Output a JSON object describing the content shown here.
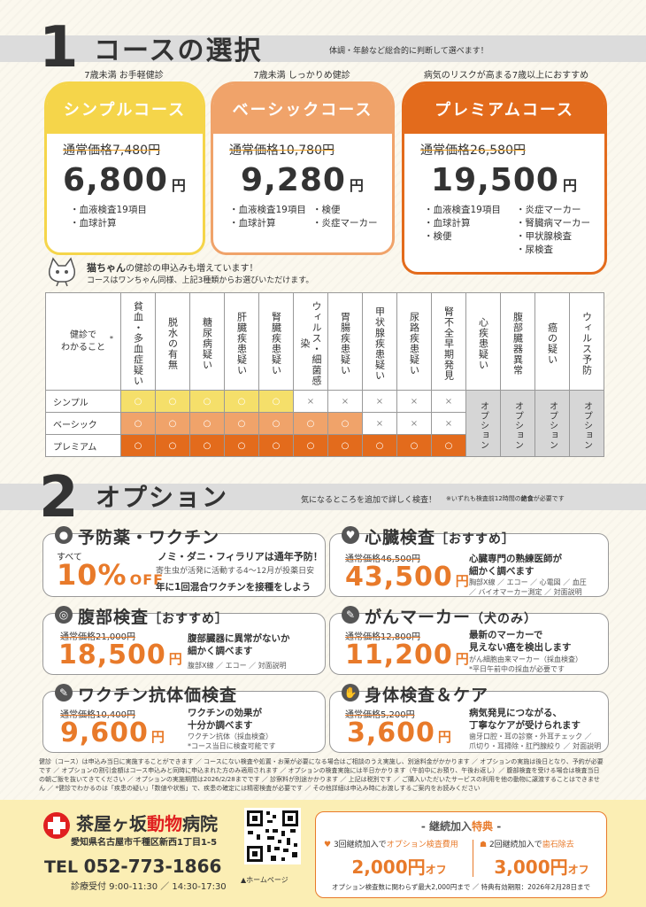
{
  "section1": {
    "num": "1",
    "title": "コースの選択",
    "sub": "体調・年齢など総合的に判断して選べます！"
  },
  "courses": [
    {
      "label": "7歳未満 お手軽健診",
      "name": "シンプルコース",
      "reg": "通常価格7,480円",
      "price": "6,800",
      "yen": "円",
      "items": [
        "・血液検査19項目",
        "・血球計算"
      ],
      "color": "#f5d54a"
    },
    {
      "label": "7歳未満 しっかりめ健診",
      "name": "ベーシックコース",
      "reg": "通常価格10,780円",
      "price": "9,280",
      "yen": "円",
      "items": [
        "・血液検査19項目",
        "・検便",
        "・血球計算",
        "・炎症マーカー"
      ],
      "color": "#f0a36a"
    },
    {
      "label": "病気のリスクが高まる7歳以上におすすめ",
      "name": "プレミアムコース",
      "reg": "通常価格26,580円",
      "price": "19,500",
      "yen": "円",
      "items": [
        "・血液検査19項目",
        "・炎症マーカー",
        "・血球計算",
        "・腎臓病マーカー",
        "・検便",
        "・甲状腺検査",
        "",
        "・尿検査"
      ],
      "color": "#e36b1c"
    }
  ],
  "cat": {
    "title": "猫ちゃん",
    "title_rest": "の健診の申込みも増えています！",
    "line2": "コースはワンちゃん同様、上記3種類からお選びいただけます。"
  },
  "table": {
    "corner": "健診で\nわかること",
    "star": "*",
    "headers": [
      "貧血・多血症疑い",
      "脱水の有無",
      "糖尿病疑い",
      "肝臓疾患疑い",
      "腎臓疾患疑い",
      "ウィルス・細菌感染",
      "胃腸疾患疑い",
      "甲状腺疾患疑い",
      "尿路疾患疑い",
      "腎不全早期発見",
      "心疾患疑い",
      "腹部臓器異常",
      "癌の疑い",
      "ウィルス予防"
    ],
    "rows": [
      {
        "name": "シンプル",
        "marks": [
          "○",
          "○",
          "○",
          "○",
          "○",
          "×",
          "×",
          "×",
          "×",
          "×"
        ]
      },
      {
        "name": "ベーシック",
        "marks": [
          "○",
          "○",
          "○",
          "○",
          "○",
          "○",
          "○",
          "×",
          "×",
          "×"
        ]
      },
      {
        "name": "プレミアム",
        "marks": [
          "○",
          "○",
          "○",
          "○",
          "○",
          "○",
          "○",
          "○",
          "○",
          "○"
        ]
      }
    ],
    "option": "オプション",
    "circle": "○",
    "cross": "×"
  },
  "section2": {
    "num": "2",
    "title": "オプション",
    "sub": "気になるところを追加で詳しく検査！",
    "note_pre": "※いずれも検査前12時間の",
    "note_bold": "絶食",
    "note_post": "が必要です"
  },
  "options": {
    "vaccine": {
      "title": "予防薬・ワクチン",
      "all": "すべて",
      "pct": "10",
      "pct_sign": "%",
      "off": "OFF",
      "d1": "ノミ・ダニ・フィラリアは通年予防！",
      "d2": "寄生虫が活発に活動する4～12月が投薬日安",
      "d3": "年に1回混合ワクチンを接種をしよう"
    },
    "heart": {
      "title": "心臓検査",
      "tag": "［おすすめ］",
      "reg": "通常価格46,500円",
      "price": "43,500",
      "yen": "円",
      "d1": "心臓専門の熟練医師が",
      "d2": "細かく調べます",
      "s1": "胸部X線 ／ エコー ／ 心電図 ／ 血圧",
      "s2": "／ バイオマーカー測定 ／ 対面説明"
    },
    "abdomen": {
      "title": "腹部検査",
      "tag": "［おすすめ］",
      "reg": "通常価格21,000円",
      "price": "18,500",
      "yen": "円",
      "d1": "腹部臓器に異常がないか",
      "d2": "細かく調べます",
      "s1": "腹部X線 ／ エコー ／ 対面説明"
    },
    "cancer": {
      "title": "がんマーカー",
      "tag": "（犬のみ）",
      "reg": "通常価格12,800円",
      "price": "11,200",
      "yen": "円",
      "d1": "最新のマーカーで",
      "d2": "見えない癌を検出します",
      "s1": "がん細胞由来マーカー（採血検査）",
      "s2": "*平日午前中の採血が必要です"
    },
    "antibody": {
      "title": "ワクチン抗体価検査",
      "reg": "通常価格10,400円",
      "price": "9,600",
      "yen": "円",
      "d1": "ワクチンの効果が",
      "d2": "十分か調べます",
      "s1": "ワクチン抗体（採血検査）",
      "s2": "*コース当日に検査可能です"
    },
    "body": {
      "title": "身体検査＆ケア",
      "reg": "通常価格5,200円",
      "price": "3,600",
      "yen": "円",
      "d1": "病気発見につながる、",
      "d2": "丁寧なケアが受けられます",
      "s1": "歯牙口腔・耳の診察・外耳チェック ／",
      "s2": "爪切り・耳掃除・肛門腺絞り ／ 対面説明"
    }
  },
  "footnote": "健診（コース）は申込み当日に実施することができます ／ コースにない検査や処置・お薬が必要になる場合はご相談のうえ実施し、別途料金がかかります ／ オプションの実施は後日となり、予約が必要です ／ オプションの割引金額はコース申込みと同時に申込まれた方のみ適用されます ／ オプションの検査実施には半日かかります（午前中にお預り、午後お返し）／ 腹部検査を受ける場合は検査当日の朝ご飯を抜いてきてください ／ オプションの実施期間は2026/2/28までです ／ 診察料が別途かかります ／ 上記は税別です ／ ご購入いただいたサービスの利用を他の動物に譲渡することはできません ／ *健診でわかるのは「疾患の疑い」「数値や状態」で、疾患の確定には精密検査が必要です ／ その他詳細は申込み時にお渡しするご案内をお読みください",
  "clinic": {
    "name1": "茶屋ヶ坂",
    "name2": "動物",
    "name3": "病院",
    "address": "愛知県名古屋市千種区新西1丁目1-5",
    "tel_label": "TEL",
    "tel": "052-773-1866",
    "hours": "診療受付 9:00-11:30 ／ 14:30-17:30",
    "qr_label": "▲ホームページ"
  },
  "special": {
    "title": "継続加入",
    "title2": "特典",
    "b1_top": "3回継続加入で",
    "b1_hl": "オプション検査費用",
    "b1_price": "2,000円",
    "b1_off": "オフ",
    "b2_top": "2回継続加入で",
    "b2_hl": "歯石除去",
    "b2_price": "3,000円",
    "b2_off": "オフ",
    "note": "オプション検査数に関わらず最大2,000円まで ／ 特典有効期限：2026年2月28日まで"
  }
}
